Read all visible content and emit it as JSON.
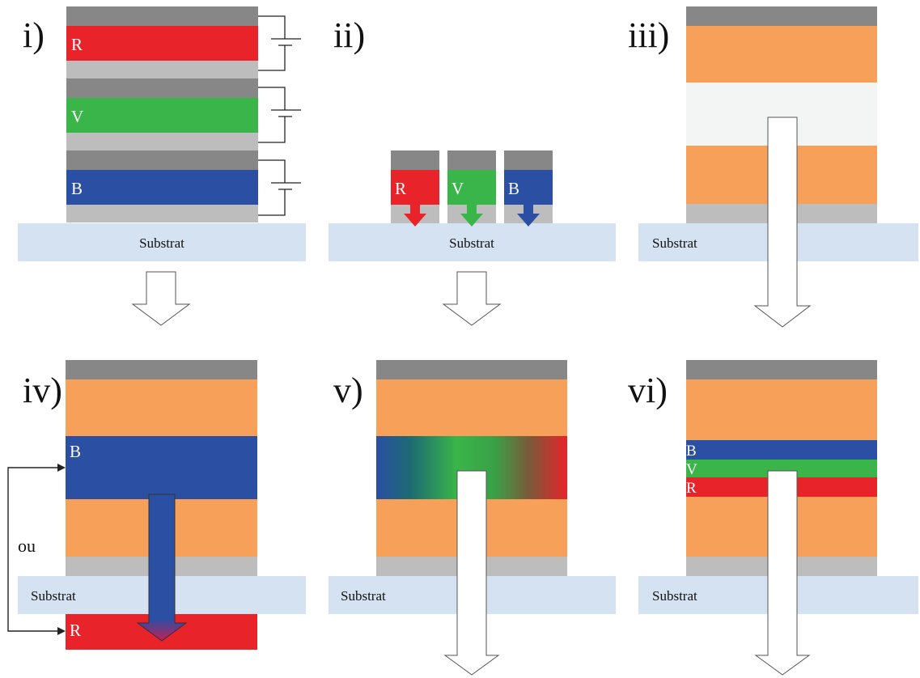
{
  "panels": {
    "i": {
      "label": "i)",
      "substrate": "Substrat",
      "layers": {
        "red": "R",
        "green": "V",
        "blue": "B"
      }
    },
    "ii": {
      "label": "ii)",
      "substrate": "Substrat",
      "pixels": {
        "red": "R",
        "green": "V",
        "blue": "B"
      }
    },
    "iii": {
      "label": "iii)",
      "substrate": "Substrat"
    },
    "iv": {
      "label": "iv)",
      "substrate": "Substrat",
      "blue": "B",
      "red": "R",
      "alt": "ou"
    },
    "v": {
      "label": "v)",
      "substrate": "Substrat"
    },
    "vi": {
      "label": "vi)",
      "substrate": "Substrat",
      "layers": {
        "blue": "B",
        "green": "V",
        "red": "R"
      }
    }
  },
  "colors": {
    "electrode": "#878787",
    "spacer": "#bdbdbd",
    "red": "#e8232a",
    "green": "#3ab54a",
    "blue": "#2a4fa3",
    "orange": "#f7a05a",
    "cavity": "#f3f5f5",
    "substrate": "#d5e2f1",
    "arrow_stroke": "#555555"
  }
}
